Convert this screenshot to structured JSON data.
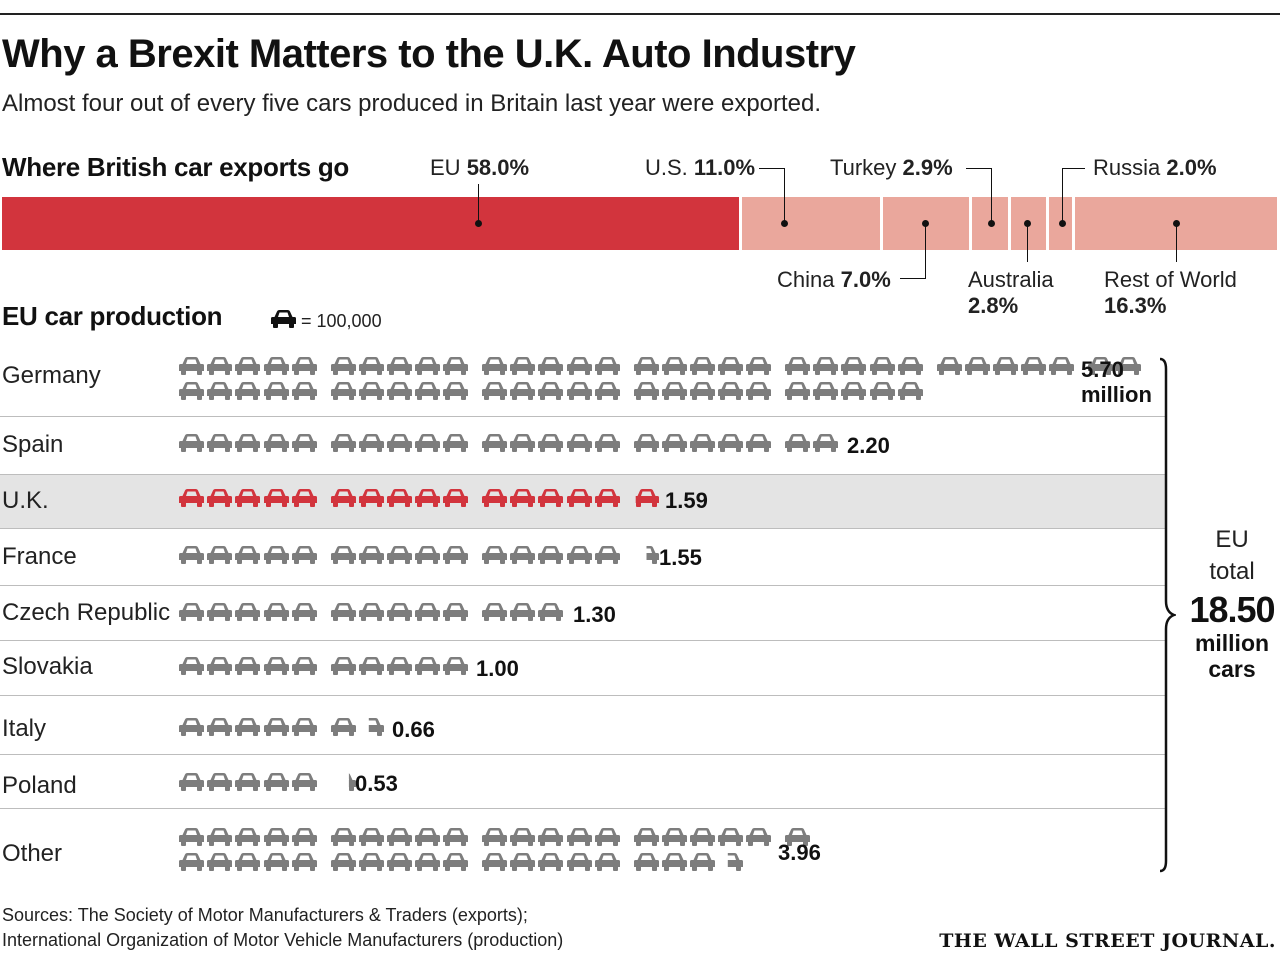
{
  "title": "Why a Brexit Matters to the U.K. Auto Industry",
  "subtitle": "Almost four out of every five cars produced in Britain last year were exported.",
  "exports": {
    "heading": "Where British car exports go",
    "segments": [
      {
        "name": "EU",
        "value": "58.0%"
      },
      {
        "name": "U.S.",
        "value": "11.0%"
      },
      {
        "name": "China",
        "value": "7.0%"
      },
      {
        "name": "Turkey",
        "value": "2.9%"
      },
      {
        "name": "Australia",
        "value": "2.8%"
      },
      {
        "name": "Russia",
        "value": "2.0%"
      },
      {
        "name": "Rest of World",
        "value": "16.3%"
      }
    ]
  },
  "production": {
    "heading": "EU car production",
    "legend": "= 100,000",
    "rows": [
      {
        "country": "Germany",
        "value": "5.70",
        "unit": "million"
      },
      {
        "country": "Spain",
        "value": "2.20"
      },
      {
        "country": "U.K.",
        "value": "1.59"
      },
      {
        "country": "France",
        "value": "1.55"
      },
      {
        "country": "Czech Republic",
        "value": "1.30"
      },
      {
        "country": "Slovakia",
        "value": "1.00"
      },
      {
        "country": "Italy",
        "value": "0.66"
      },
      {
        "country": "Poland",
        "value": "0.53"
      },
      {
        "country": "Other",
        "value": "3.96"
      }
    ],
    "total": {
      "line1": "EU",
      "line2": "total",
      "value": "18.50",
      "line3": "million",
      "line4": "cars"
    }
  },
  "chart_data": [
    {
      "type": "bar",
      "title": "Where British car exports go",
      "stacked": true,
      "unit": "percent",
      "categories": [
        "EU",
        "U.S.",
        "China",
        "Turkey",
        "Australia",
        "Russia",
        "Rest of World"
      ],
      "values": [
        58.0,
        11.0,
        7.0,
        2.9,
        2.8,
        2.0,
        16.3
      ]
    },
    {
      "type": "bar",
      "title": "EU car production",
      "unit": "million cars",
      "icon_unit": 100000,
      "categories": [
        "Germany",
        "Spain",
        "U.K.",
        "France",
        "Czech Republic",
        "Slovakia",
        "Italy",
        "Poland",
        "Other"
      ],
      "values": [
        5.7,
        2.2,
        1.59,
        1.55,
        1.3,
        1.0,
        0.66,
        0.53,
        3.96
      ],
      "highlight": "U.K.",
      "total": 18.5
    }
  ],
  "sources": {
    "line1": "Sources: The Society of Motor Manufacturers & Traders (exports);",
    "line2": "International Organization of Motor Vehicle Manufacturers (production)"
  },
  "credit": "THE WALL STREET JOURNAL.",
  "colors": {
    "eu": "#d2343d",
    "other": "#eaa79c",
    "car": "#7d7d7d",
    "car_highlight": "#d2343d"
  }
}
